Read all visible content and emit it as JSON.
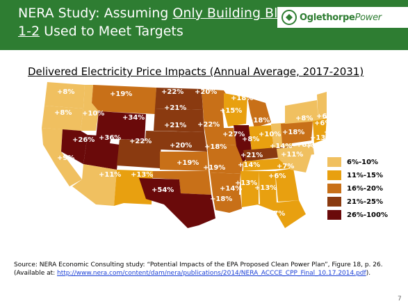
{
  "header": {
    "title_part1": "NERA Study: Assuming ",
    "title_underlined1": "Only Building Blocks",
    "title_underlined2": "1-2",
    "title_part2": " Used to Meet Targets",
    "bg_color": "#2e7d32"
  },
  "logo": {
    "text_regular": "Oglethorpe",
    "text_italic": "Power",
    "icon": "oglethorpe-logo-icon"
  },
  "subtitle": "Delivered Electricity Price Impacts (Annual Average, 2017-2031)",
  "legend": [
    {
      "label": "6%-10%",
      "color": "#f0c060"
    },
    {
      "label": "11%-15%",
      "color": "#e8a010"
    },
    {
      "label": "16%-20%",
      "color": "#c87018"
    },
    {
      "label": "21%-25%",
      "color": "#8a3a10"
    },
    {
      "label": "26%-100%",
      "color": "#6a0a0a"
    }
  ],
  "map_labels": [
    "+8%",
    "+8%",
    "+19%",
    "+22%",
    "+20%",
    "+18%",
    "+10%",
    "+34%",
    "+21%",
    "+15%",
    "+18%",
    "+7%",
    "+8%",
    "+6%",
    "+21%",
    "+22%",
    "+27%",
    "+10%",
    "+18%",
    "+6%",
    "+7%",
    "+26%",
    "+36%",
    "+22%",
    "+20%",
    "+18%",
    "+8%",
    "+14%",
    "+13%",
    "+16%",
    "+9%",
    "+21%",
    "+11%",
    "+8%",
    "+19%",
    "+14%",
    "+7%",
    "+11%",
    "+13%",
    "+19%",
    "+6%",
    "+13%",
    "+13%",
    "+54%",
    "+14%",
    "+18%",
    "+17%"
  ],
  "footer": {
    "line1": "Source: NERA Economic Consulting study: “Potential Impacts of the EPA Proposed Clean Power Plan”, Figure 18, p. 26.",
    "line2_prefix": "(Available at: ",
    "link": "http://www.nera.com/content/dam/nera/publications/2014/NERA_ACCCE_CPP_Final_10.17.2014.pdf",
    "line2_suffix": ")."
  },
  "page_number": "7"
}
